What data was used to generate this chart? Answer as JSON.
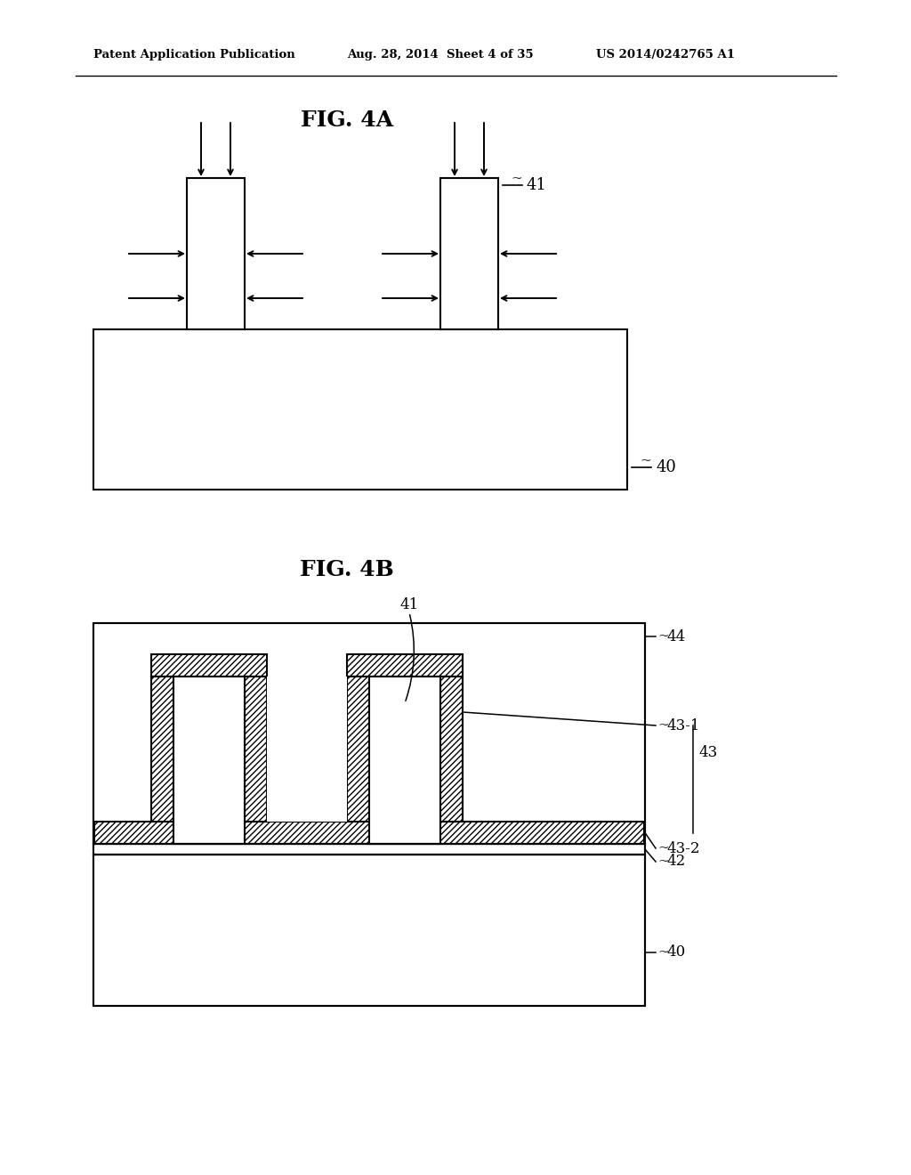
{
  "bg_color": "#ffffff",
  "line_color": "#000000",
  "fig_width": 10.24,
  "fig_height": 13.2,
  "header_left": "Patent Application Publication",
  "header_mid": "Aug. 28, 2014  Sheet 4 of 35",
  "header_right": "US 2014/0242765 A1",
  "fig4a_title": "FIG. 4A",
  "fig4b_title": "FIG. 4B",
  "label_40a": "40",
  "label_41a": "41",
  "label_40b": "40",
  "label_41b": "41",
  "label_42": "42",
  "label_43": "43",
  "label_431": "43-1",
  "label_432": "43-2",
  "label_44": "44"
}
